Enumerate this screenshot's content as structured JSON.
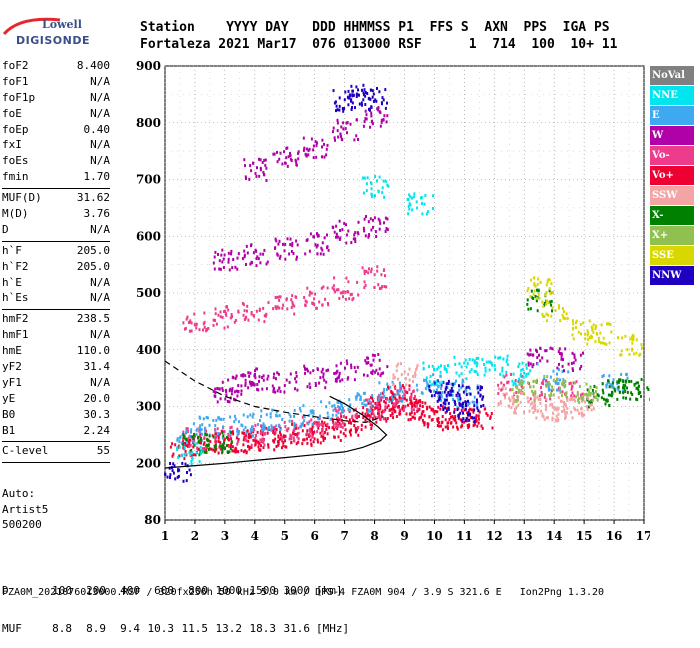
{
  "logo": {
    "line1": "Lowell",
    "line2": "DIGISONDE"
  },
  "header": {
    "labels": "Station    YYYY DAY   DDD HHMMSS P1  FFS S  AXN  PPS  IGA PS",
    "values": "Fortaleza 2021 Mar17  076 013000 RSF      1  714  100  10+ 11"
  },
  "params": [
    {
      "name": "foF2",
      "value": "8.400"
    },
    {
      "name": "foF1",
      "value": "N/A"
    },
    {
      "name": "foF1p",
      "value": "N/A"
    },
    {
      "name": "foE",
      "value": "N/A"
    },
    {
      "name": "foEp",
      "value": "0.40"
    },
    {
      "name": "fxI",
      "value": "N/A"
    },
    {
      "name": "foEs",
      "value": "N/A"
    },
    {
      "name": "fmin",
      "value": "1.70"
    },
    {
      "name": "MUF(D)",
      "value": "31.62"
    },
    {
      "name": "M(D)",
      "value": "3.76"
    },
    {
      "name": "D",
      "value": "N/A"
    },
    {
      "name": "h`F",
      "value": "205.0"
    },
    {
      "name": "h`F2",
      "value": "205.0"
    },
    {
      "name": "h`E",
      "value": "N/A"
    },
    {
      "name": "h`Es",
      "value": "N/A"
    },
    {
      "name": "hmF2",
      "value": "238.5"
    },
    {
      "name": "hmF1",
      "value": "N/A"
    },
    {
      "name": "hmE",
      "value": "110.0"
    },
    {
      "name": "yF2",
      "value": "31.4"
    },
    {
      "name": "yF1",
      "value": "N/A"
    },
    {
      "name": "yE",
      "value": "20.0"
    },
    {
      "name": "B0",
      "value": "30.3"
    },
    {
      "name": "B1",
      "value": "2.24"
    },
    {
      "name": "C-level",
      "value": "55"
    }
  ],
  "auto": {
    "line1": "Auto:",
    "line2": "Artist5",
    "line3": "500200"
  },
  "legend": [
    {
      "label": "NoVal",
      "color": "#808080"
    },
    {
      "label": "NNE",
      "color": "#00e5ee"
    },
    {
      "label": "E",
      "color": "#3ea8f0"
    },
    {
      "label": "W",
      "color": "#b000a8"
    },
    {
      "label": "Vo-",
      "color": "#ee3c8c"
    },
    {
      "label": "Vo+",
      "color": "#ee0032"
    },
    {
      "label": "SSW",
      "color": "#f4a4a4"
    },
    {
      "label": "X-",
      "color": "#008000"
    },
    {
      "label": "X+",
      "color": "#90c050"
    },
    {
      "label": "SSE",
      "color": "#d8d800"
    },
    {
      "label": "NNW",
      "color": "#2000c0"
    }
  ],
  "footer": {
    "d_label": "D",
    "d_values": [
      "100",
      "200",
      "400",
      "600",
      "800",
      "1000",
      "1500",
      "3000"
    ],
    "d_unit": "[km]",
    "muf_label": "MUF",
    "muf_values": [
      "8.8",
      "8.9",
      "9.4",
      "10.3",
      "11.5",
      "13.2",
      "18.3",
      "31.6"
    ],
    "muf_unit": "[MHz]",
    "file_line": "FZA0M_2021076013000.RSF / 320fx256h 50 kHz 5.0 km / DPS-4 FZA0M 904 / 3.9 S 321.6 E   Ion2Png 1.3.20"
  },
  "chart_data": {
    "type": "scatter",
    "x_ticks": [
      1,
      2,
      3,
      4,
      5,
      6,
      7,
      8,
      9,
      10,
      11,
      12,
      13,
      14,
      15,
      16,
      17
    ],
    "y_ticks": [
      80,
      200,
      300,
      400,
      500,
      600,
      700,
      800,
      900
    ],
    "xlim": [
      1,
      17
    ],
    "ylim": [
      80,
      900
    ],
    "y_tick_heights": [
      80,
      200,
      300,
      400,
      500,
      600,
      700,
      800,
      900
    ],
    "grid": true,
    "series": [
      {
        "color": "#ee0032",
        "points": [
          [
            1.5,
            230
          ],
          [
            2,
            235
          ],
          [
            2.5,
            240
          ],
          [
            3,
            240
          ],
          [
            3.5,
            240
          ],
          [
            4,
            242
          ],
          [
            4.5,
            245
          ],
          [
            5,
            248
          ],
          [
            5.5,
            252
          ],
          [
            6,
            255
          ],
          [
            6.5,
            262
          ],
          [
            7,
            270
          ],
          [
            7.5,
            280
          ],
          [
            8,
            290
          ],
          [
            8.5,
            300
          ],
          [
            9,
            305
          ],
          [
            9.5,
            290
          ],
          [
            10,
            285
          ],
          [
            10.5,
            280
          ],
          [
            11,
            280
          ],
          [
            11.5,
            282
          ],
          [
            8.2,
            310
          ],
          [
            8.8,
            320
          ],
          [
            9.2,
            300
          ]
        ]
      },
      {
        "color": "#ee3c8c",
        "points": [
          [
            2,
            245
          ],
          [
            3,
            250
          ],
          [
            4,
            250
          ],
          [
            5,
            258
          ],
          [
            6,
            265
          ],
          [
            7,
            280
          ],
          [
            8,
            300
          ],
          [
            9,
            315
          ],
          [
            12.5,
            340
          ],
          [
            13.5,
            330
          ],
          [
            14.5,
            335
          ],
          [
            2,
            450
          ],
          [
            3,
            460
          ],
          [
            4,
            470
          ],
          [
            5,
            480
          ],
          [
            6,
            495
          ],
          [
            7,
            510
          ],
          [
            8,
            530
          ]
        ]
      },
      {
        "color": "#3ea8f0",
        "points": [
          [
            1.8,
            255
          ],
          [
            2.5,
            265
          ],
          [
            3.5,
            270
          ],
          [
            4.5,
            280
          ],
          [
            5.5,
            285
          ],
          [
            6.5,
            295
          ],
          [
            7.5,
            310
          ],
          [
            8.5,
            330
          ],
          [
            9.8,
            340
          ],
          [
            10.5,
            330
          ],
          [
            11,
            320
          ],
          [
            14,
            350
          ],
          [
            16,
            340
          ]
        ]
      },
      {
        "color": "#b000a8",
        "points": [
          [
            3,
            330
          ],
          [
            3.5,
            340
          ],
          [
            4,
            350
          ],
          [
            5,
            345
          ],
          [
            6,
            355
          ],
          [
            7,
            365
          ],
          [
            8,
            375
          ],
          [
            3,
            560
          ],
          [
            4,
            570
          ],
          [
            5,
            580
          ],
          [
            6,
            590
          ],
          [
            7,
            610
          ],
          [
            8,
            620
          ],
          [
            4,
            720
          ],
          [
            5,
            740
          ],
          [
            6,
            760
          ],
          [
            7,
            790
          ],
          [
            8,
            810
          ],
          [
            13.5,
            390
          ],
          [
            14.5,
            385
          ]
        ]
      },
      {
        "color": "#008000",
        "points": [
          [
            2,
            235
          ],
          [
            2.8,
            240
          ],
          [
            15.5,
            320
          ],
          [
            16,
            330
          ],
          [
            16.5,
            335
          ],
          [
            17,
            330
          ],
          [
            13.5,
            490
          ]
        ]
      },
      {
        "color": "#2000c0",
        "points": [
          [
            1.4,
            180
          ],
          [
            7,
            840
          ],
          [
            7.5,
            850
          ],
          [
            8,
            845
          ],
          [
            10.5,
            310
          ],
          [
            11,
            295
          ],
          [
            10.2,
            330
          ],
          [
            11.2,
            320
          ]
        ]
      },
      {
        "color": "#f4a4a4",
        "points": [
          [
            12.5,
            320
          ],
          [
            13,
            310
          ],
          [
            13.5,
            300
          ],
          [
            14,
            295
          ],
          [
            14.5,
            300
          ],
          [
            15,
            305
          ],
          [
            9,
            360
          ]
        ]
      },
      {
        "color": "#d8d800",
        "points": [
          [
            13.5,
            510
          ],
          [
            15,
            440
          ],
          [
            15.5,
            430
          ],
          [
            16.5,
            410
          ],
          [
            14,
            470
          ]
        ]
      },
      {
        "color": "#00e5ee",
        "points": [
          [
            10,
            360
          ],
          [
            11,
            370
          ],
          [
            12,
            375
          ],
          [
            13,
            360
          ],
          [
            9.5,
            660
          ],
          [
            8,
            690
          ],
          [
            1.8,
            220
          ]
        ]
      },
      {
        "color": "#90c050",
        "points": [
          [
            13,
            330
          ],
          [
            14,
            340
          ],
          [
            15,
            325
          ]
        ]
      }
    ],
    "curves": [
      {
        "name": "profile",
        "style": "solid",
        "points": [
          [
            1,
            190
          ],
          [
            2,
            195
          ],
          [
            3,
            200
          ],
          [
            4,
            205
          ],
          [
            5,
            210
          ],
          [
            6,
            215
          ],
          [
            7,
            220
          ],
          [
            7.6,
            228
          ],
          [
            8.2,
            240
          ],
          [
            8.4,
            250
          ],
          [
            8.1,
            265
          ],
          [
            7.6,
            285
          ],
          [
            7,
            305
          ],
          [
            6.5,
            318
          ]
        ]
      },
      {
        "name": "virtual",
        "style": "dashed",
        "points": [
          [
            1,
            380
          ],
          [
            2,
            345
          ],
          [
            3,
            318
          ],
          [
            4,
            300
          ],
          [
            5,
            290
          ],
          [
            6,
            282
          ],
          [
            7,
            275
          ],
          [
            7.7,
            272
          ],
          [
            8.3,
            282
          ]
        ]
      }
    ]
  }
}
